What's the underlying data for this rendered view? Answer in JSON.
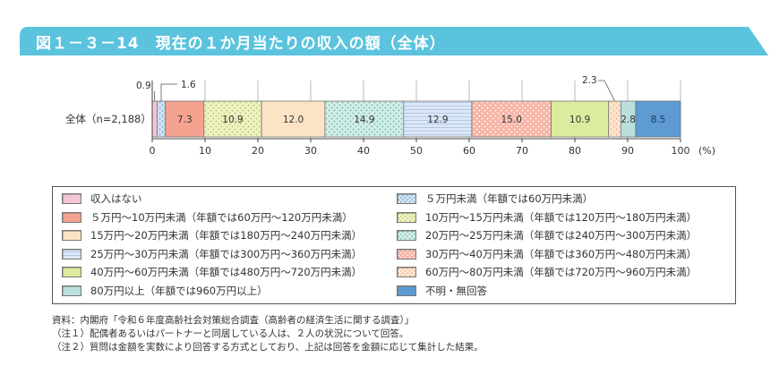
{
  "title": "図１－３－14　現在の１か月当たりの収入の額（全体）",
  "colors": {
    "header": "#5bc3dd",
    "header_tab": "#7ecfe5"
  },
  "chart_data": {
    "type": "bar",
    "orientation": "horizontal-stacked",
    "categories": [
      "全体（n=2,188）"
    ],
    "xlim": [
      0,
      100
    ],
    "xticks": [
      "0",
      "10",
      "20",
      "30",
      "40",
      "50",
      "60",
      "70",
      "80",
      "90",
      "100"
    ],
    "unit": "(%)",
    "grid": true,
    "legend_position": "bottom",
    "series": [
      {
        "name": "収入はない",
        "value": 0.9,
        "label": "0.9",
        "color": "#f3c6d6",
        "pattern": "solid"
      },
      {
        "name": "５万円未満（年額では60万円未満）",
        "value": 1.6,
        "label": "1.6",
        "color": "#cfe3f3",
        "pattern": "dots",
        "dot": "#6fa6cf"
      },
      {
        "name": "５万円〜10万円未満（年額では60万円〜120万円未満）",
        "value": 7.3,
        "label": "7.3",
        "color": "#f3a390",
        "pattern": "solid"
      },
      {
        "name": "10万円〜15万円未満（年額では120万円〜180万円未満）",
        "value": 10.9,
        "label": "10.9",
        "color": "#eef2c5",
        "pattern": "dots",
        "dot": "#b7c655"
      },
      {
        "name": "15万円〜20万円未満（年額では180万円〜240万円未満）",
        "value": 12.0,
        "label": "12.0",
        "color": "#fde3c6",
        "pattern": "solid"
      },
      {
        "name": "20万円〜25万円未満（年額では240万円〜300万円未満）",
        "value": 14.9,
        "label": "14.9",
        "color": "#d3ede9",
        "pattern": "dots",
        "dot": "#6cbab0"
      },
      {
        "name": "25万円〜30万円未満（年額では300万円〜360万円未満）",
        "value": 12.9,
        "label": "12.9",
        "color": "#dce7f6",
        "pattern": "hlines",
        "dot": "#b3c8e8"
      },
      {
        "name": "30万円〜40万円未満（年額では360万円〜480万円未満）",
        "value": 15.0,
        "label": "15.0",
        "color": "#f7b5a6",
        "pattern": "dots",
        "dot": "#ffffff"
      },
      {
        "name": "40万円〜60万円未満（年額では480万円〜720万円未満）",
        "value": 10.9,
        "label": "10.9",
        "color": "#dcec9f",
        "pattern": "solid"
      },
      {
        "name": "60万円〜80万円未満（年額では720万円〜960万円未満）",
        "value": 2.3,
        "label": "2.3",
        "color": "#fde7d2",
        "pattern": "dots",
        "dot": "#f0a878"
      },
      {
        "name": "80万円以上（年額では960万円以上）",
        "value": 2.8,
        "label": "2.8",
        "color": "#b9e0dc",
        "pattern": "solid"
      },
      {
        "name": "不明・無回答",
        "value": 8.5,
        "label": "8.5",
        "color": "#5d9bd2",
        "pattern": "solid"
      }
    ]
  },
  "legend_order": [
    0,
    1,
    2,
    3,
    4,
    5,
    6,
    7,
    8,
    9,
    10,
    11
  ],
  "notes": [
    "資料：内閣府「令和６年度高齢社会対策総合調査（高齢者の経済生活に関する調査）」",
    "（注１）配偶者あるいはパートナーと同居している人は、２人の状況について回答。",
    "（注２）質問は金額を実数により回答する方式としており、上記は回答を金額に応じて集計した結果。"
  ]
}
